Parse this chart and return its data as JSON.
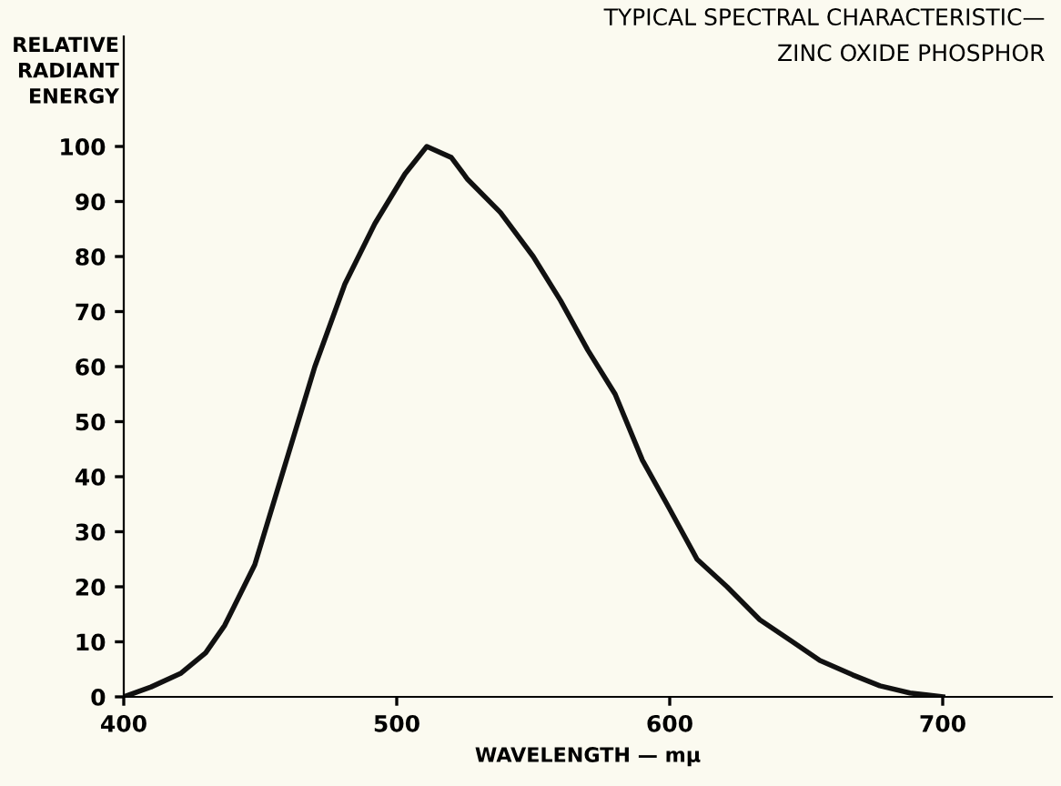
{
  "chart_data": {
    "type": "line",
    "title": "TYPICAL SPECTRAL CHARACTERISTIC—\nZINC OXIDE PHOSPHOR",
    "xlabel": "WAVELENGTH — mμ",
    "ylabel": "RELATIVE\nRADIANT\nENERGY",
    "x": [
      400,
      410,
      421,
      430,
      437,
      448,
      459,
      470,
      481,
      492,
      503,
      511,
      520,
      526,
      538,
      550,
      560,
      570,
      580,
      590,
      599,
      610,
      621,
      633,
      645,
      655,
      667,
      677,
      688,
      700
    ],
    "series": [
      {
        "color": "#111111",
        "values": [
          0,
          1.8,
          4.3,
          8,
          13,
          24,
          42,
          60,
          75,
          86,
          95,
          100,
          98,
          94,
          88,
          80,
          72,
          63,
          55,
          43,
          35,
          25,
          20,
          14,
          10,
          6.6,
          4,
          2,
          0.7,
          0
        ]
      }
    ],
    "xlim": [
      400,
      740
    ],
    "ylim": [
      0,
      120
    ],
    "xticks": [
      400,
      500,
      600,
      700
    ],
    "yticks": [
      0,
      10,
      20,
      30,
      40,
      50,
      60,
      70,
      80,
      90,
      100
    ],
    "grid": false,
    "legend": false,
    "marker": "none",
    "line_style": "solid"
  }
}
